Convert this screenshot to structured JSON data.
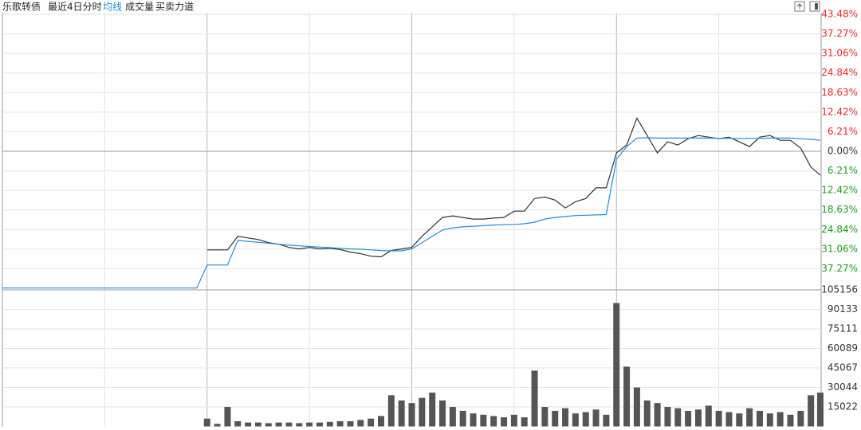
{
  "chart_data": [
    {
      "type": "line",
      "title": "乐歌转债",
      "subtitle": "最近4日分时",
      "x": [
        0,
        12,
        24,
        36,
        48,
        60,
        72,
        84,
        96,
        108,
        120,
        132,
        144,
        156,
        168,
        180,
        192,
        204,
        216,
        228,
        240,
        252,
        264,
        276,
        288,
        300,
        312,
        324,
        336,
        348,
        360,
        372,
        384,
        396,
        408,
        420,
        432,
        444,
        456,
        468,
        480,
        492,
        504,
        516,
        528,
        540,
        552,
        564,
        576,
        588,
        600,
        612,
        624,
        636,
        648,
        660,
        672,
        684,
        696,
        708,
        720,
        732,
        744,
        756,
        768,
        780,
        792,
        804,
        816,
        828,
        840,
        852,
        864,
        876,
        888,
        900,
        912,
        924,
        936,
        948,
        959
      ],
      "xlim": [
        0,
        960
      ],
      "xticks": [
        120,
        240,
        360,
        480,
        600,
        720,
        840
      ],
      "ylim": [
        -43.48,
        43.48
      ],
      "yticks": [
        {
          "value": 43.48,
          "label": "43.48%"
        },
        {
          "value": 37.27,
          "label": "37.27%"
        },
        {
          "value": 31.06,
          "label": "31.06%"
        },
        {
          "value": 24.84,
          "label": "24.84%"
        },
        {
          "value": 18.63,
          "label": "18.63%"
        },
        {
          "value": 12.42,
          "label": "12.42%"
        },
        {
          "value": 6.21,
          "label": "6.21%"
        },
        {
          "value": 0,
          "label": "0.00%"
        },
        {
          "value": -6.21,
          "label": "6.21%"
        },
        {
          "value": -12.42,
          "label": "12.42%"
        },
        {
          "value": -18.63,
          "label": "18.63%"
        },
        {
          "value": -24.84,
          "label": "24.84%"
        },
        {
          "value": -31.06,
          "label": "31.06%"
        },
        {
          "value": -37.27,
          "label": "37.27%"
        }
      ],
      "grid": true,
      "tick_colors": {
        "up": "#e8262b",
        "zero": "#333333",
        "down": "#1d9b1d"
      },
      "series": [
        {
          "color": "#333333",
          "values": [
            null,
            null,
            null,
            null,
            null,
            null,
            null,
            null,
            null,
            null,
            null,
            null,
            null,
            null,
            null,
            null,
            null,
            null,
            null,
            null,
            -31.3,
            -31.3,
            -31.3,
            -27.0,
            -27.5,
            -28.0,
            -29.0,
            -29.5,
            -30.5,
            -31.0,
            -30.5,
            -31.0,
            -30.8,
            -31.2,
            -32.0,
            -32.5,
            -33.3,
            -33.5,
            -31.5,
            -31.0,
            -30.5,
            -27.0,
            -24.0,
            -21.0,
            -20.5,
            -21.0,
            -21.5,
            -21.5,
            -21.2,
            -21.0,
            -19.0,
            -19.0,
            -15.0,
            -14.5,
            -15.5,
            -18.0,
            -16.0,
            -15.0,
            -11.6,
            -11.6,
            -0.5,
            2.0,
            10.5,
            5.0,
            -0.5,
            3.0,
            2.0,
            4.0,
            5.0,
            4.5,
            4.0,
            4.5,
            3.0,
            1.5,
            4.5,
            5.0,
            3.5,
            3.5,
            1.0,
            -5.0,
            -7.6
          ]
        },
        {
          "name": "均线",
          "color": "#1f8ed8",
          "values": [
            -43.4,
            -43.4,
            -43.4,
            -43.4,
            -43.4,
            -43.4,
            -43.4,
            -43.4,
            -43.4,
            -43.4,
            -43.4,
            -43.4,
            -43.4,
            -43.4,
            -43.4,
            -43.4,
            -43.4,
            -43.4,
            -43.4,
            -43.4,
            -36.1,
            -36.1,
            -36.1,
            -28.3,
            -28.6,
            -28.9,
            -29.2,
            -29.5,
            -29.8,
            -30.0,
            -30.2,
            -30.4,
            -30.6,
            -30.8,
            -31.0,
            -31.1,
            -31.3,
            -31.5,
            -31.6,
            -31.6,
            -31.0,
            -29.0,
            -27.0,
            -25.0,
            -24.3,
            -24.0,
            -23.8,
            -23.6,
            -23.4,
            -23.3,
            -23.2,
            -23.0,
            -22.5,
            -21.5,
            -21.0,
            -20.7,
            -20.4,
            -20.3,
            -20.2,
            -20.1,
            -2.5,
            1.5,
            4.2,
            4.3,
            4.2,
            4.2,
            4.2,
            4.2,
            4.2,
            4.2,
            4.1,
            4.1,
            4.1,
            4.1,
            4.1,
            4.2,
            4.2,
            4.2,
            4.0,
            3.8,
            3.5
          ]
        }
      ]
    },
    {
      "type": "bar",
      "title": "成交量",
      "color": "#555555",
      "x": [
        0,
        12,
        24,
        36,
        48,
        60,
        72,
        84,
        96,
        108,
        120,
        132,
        144,
        156,
        168,
        180,
        192,
        204,
        216,
        228,
        240,
        252,
        264,
        276,
        288,
        300,
        312,
        324,
        336,
        348,
        360,
        372,
        384,
        396,
        408,
        420,
        432,
        444,
        456,
        468,
        480,
        492,
        504,
        516,
        528,
        540,
        552,
        564,
        576,
        588,
        600,
        612,
        624,
        636,
        648,
        660,
        672,
        684,
        696,
        708,
        720,
        732,
        744,
        756,
        768,
        780,
        792,
        804,
        816,
        828,
        840,
        852,
        864,
        876,
        888,
        900,
        912,
        924,
        936,
        948,
        959
      ],
      "xlim": [
        0,
        960
      ],
      "ylim": [
        0,
        105156
      ],
      "yticks": [
        105156,
        90133,
        75111,
        60089,
        45067,
        30044,
        15022
      ],
      "values": [
        0,
        0,
        0,
        0,
        0,
        0,
        0,
        0,
        0,
        0,
        0,
        0,
        0,
        0,
        0,
        0,
        0,
        0,
        0,
        0,
        6000,
        2000,
        15000,
        4000,
        3000,
        3000,
        2500,
        3000,
        3000,
        2500,
        3000,
        3000,
        3500,
        4000,
        4000,
        5000,
        6000,
        8000,
        24000,
        20000,
        18000,
        22000,
        26000,
        20000,
        15000,
        12000,
        10000,
        9000,
        8000,
        7000,
        9000,
        7000,
        43000,
        15000,
        12000,
        14000,
        10000,
        11000,
        13000,
        9000,
        95000,
        46000,
        30000,
        20000,
        18000,
        15000,
        14000,
        12000,
        13000,
        16000,
        12000,
        11000,
        10000,
        14000,
        12000,
        10000,
        11000,
        9000,
        12000,
        24000,
        26000
      ]
    }
  ],
  "menu": [
    "买卖力道"
  ]
}
